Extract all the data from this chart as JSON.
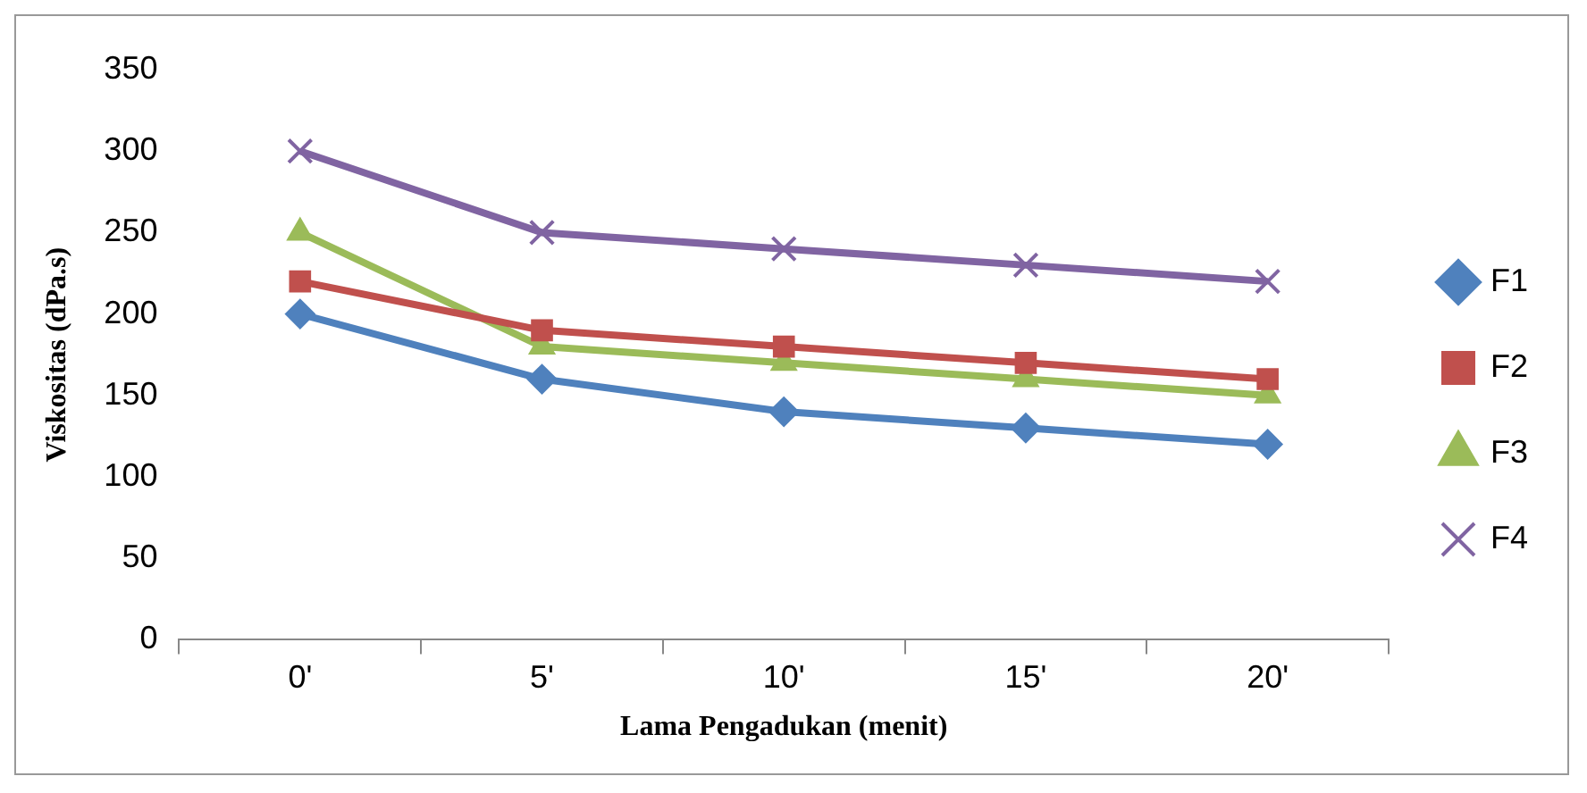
{
  "chart_data": {
    "type": "line",
    "xlabel": "Lama Pengadukan (menit)",
    "ylabel": "Viskositas (dPa.s)",
    "categories": [
      "0'",
      "5'",
      "10'",
      "15'",
      "20'"
    ],
    "series": [
      {
        "name": "F1",
        "color": "#4f81bd",
        "marker": "diamond",
        "values": [
          200,
          160,
          140,
          130,
          120
        ]
      },
      {
        "name": "F2",
        "color": "#c0504d",
        "marker": "square",
        "values": [
          220,
          190,
          180,
          170,
          160
        ]
      },
      {
        "name": "F3",
        "color": "#9bbb59",
        "marker": "triangle",
        "values": [
          250,
          180,
          170,
          160,
          150
        ]
      },
      {
        "name": "F4",
        "color": "#8064a2",
        "marker": "cross",
        "values": [
          300,
          250,
          240,
          230,
          220
        ]
      }
    ],
    "ylim": [
      0,
      350
    ],
    "yticks": [
      0,
      50,
      100,
      150,
      200,
      250,
      300,
      350
    ],
    "grid": false,
    "legend": "right",
    "line_style": "solid"
  }
}
